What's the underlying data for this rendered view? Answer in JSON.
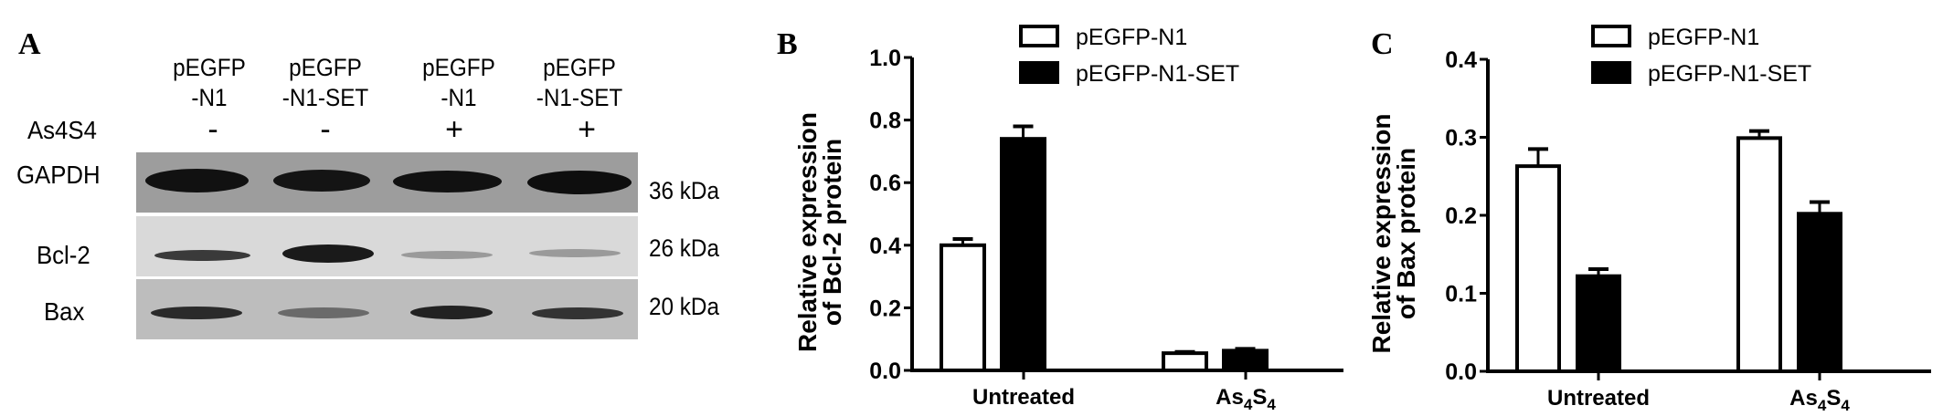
{
  "panel_a": {
    "letter": "A",
    "lanes": [
      {
        "line1": "pEGFP",
        "line2": "-N1",
        "treatment": "-"
      },
      {
        "line1": "pEGFP",
        "line2": "-N1-SET",
        "treatment": "-"
      },
      {
        "line1": "pEGFP",
        "line2": "-N1",
        "treatment": "+"
      },
      {
        "line1": "pEGFP",
        "line2": "-N1-SET",
        "treatment": "+"
      }
    ],
    "treatment_label": "As4S4",
    "rows": [
      {
        "label": "GAPDH",
        "size": "36 kDa"
      },
      {
        "label": "Bcl-2",
        "size": "26 kDa"
      },
      {
        "label": "Bax",
        "size": "20 kDa"
      }
    ]
  },
  "chart_data": [
    {
      "panel": "B",
      "type": "bar",
      "ylabel": [
        "Relative expression",
        "of Bcl-2 protein"
      ],
      "categories": [
        "Untreated",
        "As4S4"
      ],
      "ylim": [
        0,
        1.0
      ],
      "yticks": [
        "0.0",
        "0.2",
        "0.4",
        "0.6",
        "0.8",
        "1.0"
      ],
      "legend_position": "top",
      "series": [
        {
          "name": "pEGFP-N1",
          "fill": "#ffffff",
          "values": [
            0.4,
            0.055
          ],
          "errors": [
            0.02,
            0.004
          ]
        },
        {
          "name": "pEGFP-N1-SET",
          "fill": "#000000",
          "values": [
            0.74,
            0.063
          ],
          "errors": [
            0.04,
            0.006
          ]
        }
      ]
    },
    {
      "panel": "C",
      "type": "bar",
      "ylabel": [
        "Relative expression",
        "of Bax protein"
      ],
      "categories": [
        "Untreated",
        "As4S4"
      ],
      "ylim": [
        0,
        0.4
      ],
      "yticks": [
        "0.0",
        "0.1",
        "0.2",
        "0.3",
        "0.4"
      ],
      "legend_position": "top",
      "series": [
        {
          "name": "pEGFP-N1",
          "fill": "#ffffff",
          "values": [
            0.263,
            0.299
          ],
          "errors": [
            0.022,
            0.009
          ]
        },
        {
          "name": "pEGFP-N1-SET",
          "fill": "#000000",
          "values": [
            0.122,
            0.202
          ],
          "errors": [
            0.009,
            0.015
          ]
        }
      ]
    }
  ]
}
